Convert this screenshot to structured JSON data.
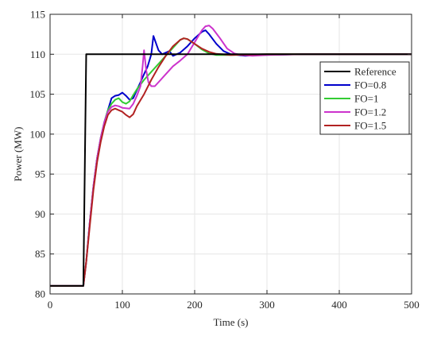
{
  "chart_data": {
    "type": "line",
    "xlabel": "Time (s)",
    "ylabel": "Power  (MW)",
    "xlim": [
      0,
      500
    ],
    "ylim": [
      80,
      115
    ],
    "xticks": [
      0,
      100,
      200,
      300,
      400,
      500
    ],
    "yticks": [
      80,
      85,
      90,
      95,
      100,
      105,
      110,
      115
    ],
    "grid": true,
    "legend_position": "right",
    "series": [
      {
        "name": "Reference",
        "color": "#000000",
        "points": [
          [
            0,
            81
          ],
          [
            46,
            81
          ],
          [
            50,
            110
          ],
          [
            500,
            110
          ]
        ]
      },
      {
        "name": "FO=0.8",
        "color": "#0000cc",
        "points": [
          [
            0,
            81
          ],
          [
            46,
            81
          ],
          [
            50,
            84
          ],
          [
            55,
            89
          ],
          [
            60,
            93.5
          ],
          [
            65,
            97
          ],
          [
            70,
            99.5
          ],
          [
            75,
            101.5
          ],
          [
            80,
            103
          ],
          [
            85,
            104.5
          ],
          [
            90,
            104.8
          ],
          [
            95,
            104.9
          ],
          [
            100,
            105.2
          ],
          [
            105,
            104.8
          ],
          [
            110,
            104.3
          ],
          [
            115,
            104.5
          ],
          [
            120,
            105.5
          ],
          [
            125,
            106.5
          ],
          [
            130,
            107.5
          ],
          [
            135,
            108.5
          ],
          [
            140,
            110
          ],
          [
            143,
            112.3
          ],
          [
            146,
            111.5
          ],
          [
            150,
            110.5
          ],
          [
            155,
            110
          ],
          [
            160,
            110.2
          ],
          [
            165,
            110.4
          ],
          [
            170,
            109.8
          ],
          [
            180,
            110.2
          ],
          [
            190,
            111
          ],
          [
            200,
            112
          ],
          [
            210,
            112.8
          ],
          [
            215,
            113
          ],
          [
            220,
            112.5
          ],
          [
            230,
            111.3
          ],
          [
            240,
            110.4
          ],
          [
            250,
            110
          ],
          [
            260,
            109.9
          ],
          [
            270,
            109.8
          ],
          [
            290,
            109.9
          ],
          [
            350,
            110
          ],
          [
            500,
            110
          ]
        ]
      },
      {
        "name": "FO=1",
        "color": "#33cc33",
        "points": [
          [
            0,
            81
          ],
          [
            46,
            81
          ],
          [
            50,
            84
          ],
          [
            55,
            89
          ],
          [
            60,
            93.5
          ],
          [
            65,
            97
          ],
          [
            70,
            99.5
          ],
          [
            75,
            101.5
          ],
          [
            80,
            103
          ],
          [
            85,
            103.8
          ],
          [
            90,
            104.3
          ],
          [
            95,
            104.5
          ],
          [
            100,
            104
          ],
          [
            105,
            103.8
          ],
          [
            110,
            104.1
          ],
          [
            115,
            104.9
          ],
          [
            120,
            105.6
          ],
          [
            130,
            106.8
          ],
          [
            140,
            107.8
          ],
          [
            150,
            108.8
          ],
          [
            160,
            109.8
          ],
          [
            170,
            110.8
          ],
          [
            180,
            111.8
          ],
          [
            185,
            112
          ],
          [
            190,
            111.9
          ],
          [
            200,
            111.3
          ],
          [
            210,
            110.6
          ],
          [
            220,
            110.1
          ],
          [
            230,
            109.9
          ],
          [
            250,
            109.9
          ],
          [
            300,
            110
          ],
          [
            500,
            110
          ]
        ]
      },
      {
        "name": "FO=1.2",
        "color": "#cc33cc",
        "points": [
          [
            0,
            81
          ],
          [
            46,
            81
          ],
          [
            50,
            84
          ],
          [
            55,
            89
          ],
          [
            60,
            93.5
          ],
          [
            65,
            97
          ],
          [
            70,
            99.5
          ],
          [
            75,
            101.5
          ],
          [
            80,
            102.8
          ],
          [
            85,
            103.4
          ],
          [
            90,
            103.6
          ],
          [
            95,
            103.5
          ],
          [
            100,
            103.3
          ],
          [
            110,
            103.2
          ],
          [
            115,
            103.8
          ],
          [
            120,
            104.8
          ],
          [
            125,
            106
          ],
          [
            128,
            108.5
          ],
          [
            130,
            110.5
          ],
          [
            133,
            108
          ],
          [
            136,
            106.5
          ],
          [
            140,
            106
          ],
          [
            145,
            106
          ],
          [
            150,
            106.5
          ],
          [
            160,
            107.5
          ],
          [
            170,
            108.5
          ],
          [
            180,
            109.2
          ],
          [
            190,
            110
          ],
          [
            200,
            111.5
          ],
          [
            210,
            113
          ],
          [
            215,
            113.5
          ],
          [
            220,
            113.6
          ],
          [
            225,
            113.2
          ],
          [
            235,
            112
          ],
          [
            245,
            110.7
          ],
          [
            255,
            110.1
          ],
          [
            265,
            109.9
          ],
          [
            280,
            109.8
          ],
          [
            300,
            109.9
          ],
          [
            350,
            110
          ],
          [
            500,
            110
          ]
        ]
      },
      {
        "name": "FO=1.5",
        "color": "#b22222",
        "points": [
          [
            0,
            81
          ],
          [
            46,
            81
          ],
          [
            50,
            84
          ],
          [
            55,
            88.5
          ],
          [
            60,
            93
          ],
          [
            65,
            96.5
          ],
          [
            70,
            99
          ],
          [
            75,
            101
          ],
          [
            80,
            102.4
          ],
          [
            85,
            103
          ],
          [
            90,
            103.2
          ],
          [
            95,
            103
          ],
          [
            100,
            102.8
          ],
          [
            105,
            102.4
          ],
          [
            110,
            102.1
          ],
          [
            115,
            102.5
          ],
          [
            120,
            103.5
          ],
          [
            130,
            105
          ],
          [
            140,
            106.8
          ],
          [
            150,
            108.4
          ],
          [
            160,
            109.8
          ],
          [
            170,
            111
          ],
          [
            180,
            111.8
          ],
          [
            185,
            112
          ],
          [
            190,
            111.9
          ],
          [
            200,
            111.3
          ],
          [
            210,
            110.7
          ],
          [
            220,
            110.3
          ],
          [
            230,
            110.05
          ],
          [
            250,
            109.9
          ],
          [
            300,
            110
          ],
          [
            500,
            110
          ]
        ]
      }
    ]
  }
}
